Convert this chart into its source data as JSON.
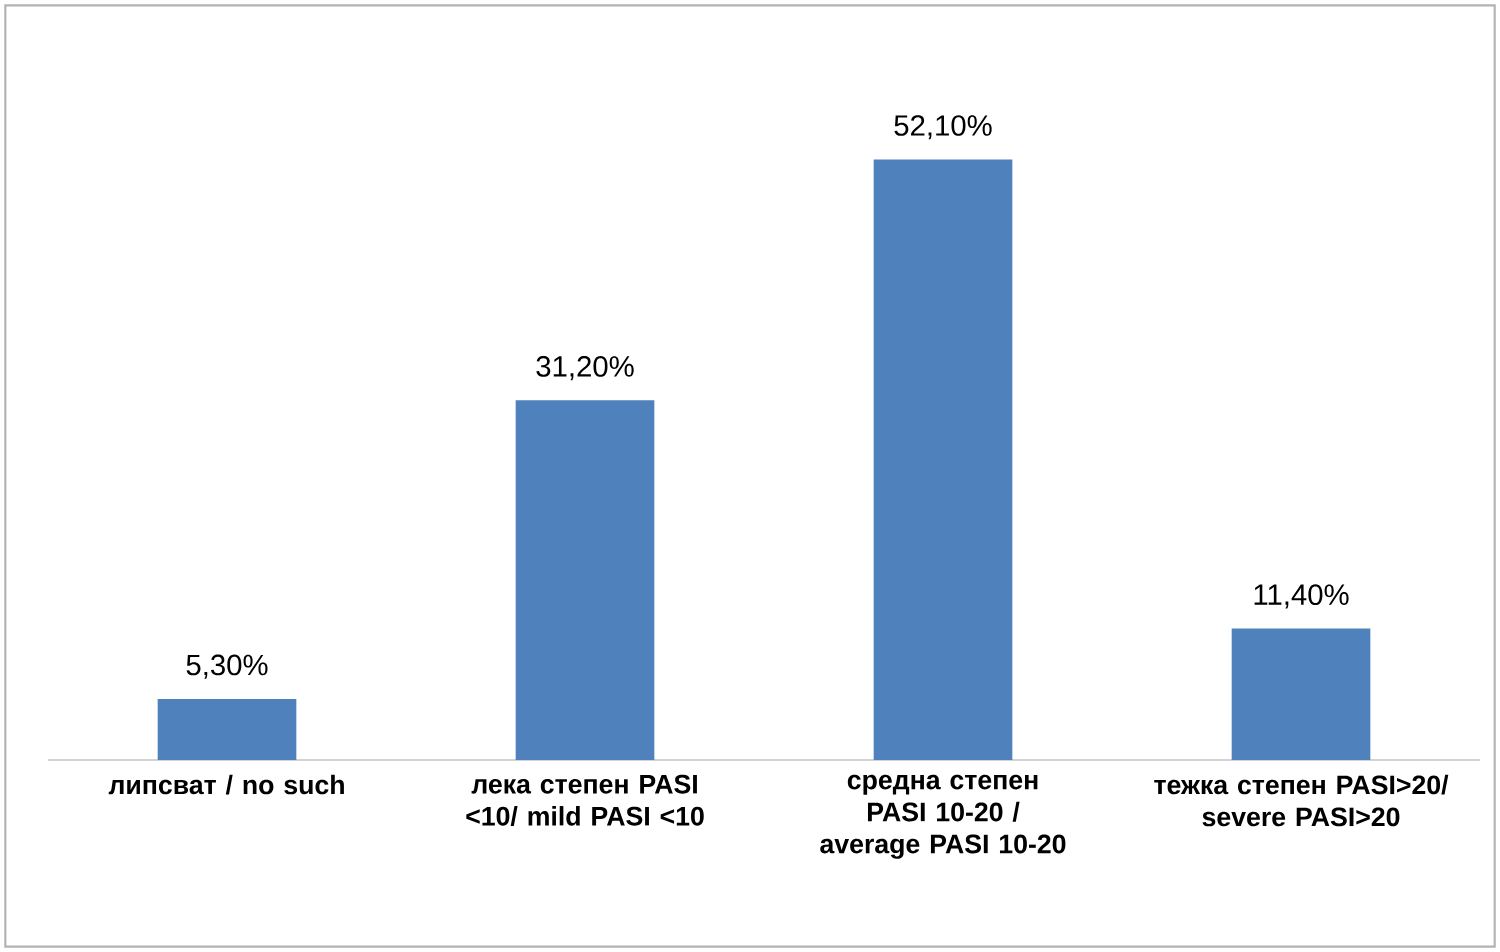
{
  "chart_data": {
    "type": "bar",
    "categories": [
      "липсват / no such",
      "лека степен PASI <10/ mild PASI <10",
      "средна степен PASI 10-20 /  average PASI 10-20",
      "тежка степен PASI>20/ severe PASI>20"
    ],
    "values": [
      5.3,
      31.2,
      52.1,
      11.4
    ],
    "value_labels": [
      "5,30%",
      "31,20%",
      "52,10%",
      "11,40%"
    ],
    "color": "#4f81bd"
  }
}
